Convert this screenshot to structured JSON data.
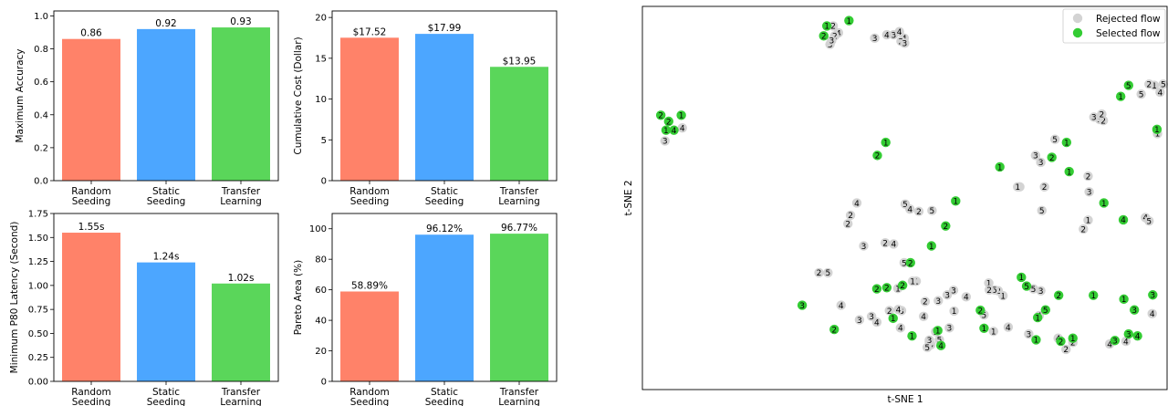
{
  "chart_data": [
    {
      "type": "bar",
      "categories": [
        "Random\nSeeding",
        "Static\nSeeding",
        "Transfer\nLearning"
      ],
      "values": [
        0.86,
        0.92,
        0.93
      ],
      "data_labels": [
        "0.86",
        "0.92",
        "0.93"
      ],
      "ylabel": "Maximum Accuracy",
      "ylim": [
        0,
        1.03
      ],
      "yticks": [
        0.0,
        0.2,
        0.4,
        0.6,
        0.8,
        1.0
      ],
      "ytick_labels": [
        "0.0",
        "0.2",
        "0.4",
        "0.6",
        "0.8",
        "1.0"
      ],
      "colors": [
        "#ff8269",
        "#4ca6ff",
        "#5ad65a"
      ]
    },
    {
      "type": "bar",
      "categories": [
        "Random\nSeeding",
        "Static\nSeeding",
        "Transfer\nLearning"
      ],
      "values": [
        17.52,
        17.99,
        13.95
      ],
      "data_labels": [
        "$17.52",
        "$17.99",
        "$13.95"
      ],
      "ylabel": "Cumulative Cost (Dollar)",
      "ylim": [
        0,
        20.8
      ],
      "yticks": [
        0,
        5,
        10,
        15,
        20
      ],
      "ytick_labels": [
        "0",
        "5",
        "10",
        "15",
        "20"
      ],
      "colors": [
        "#ff8269",
        "#4ca6ff",
        "#5ad65a"
      ]
    },
    {
      "type": "bar",
      "categories": [
        "Random\nSeeding",
        "Static\nSeeding",
        "Transfer\nLearning"
      ],
      "values": [
        1.55,
        1.24,
        1.02
      ],
      "data_labels": [
        "1.55s",
        "1.24s",
        "1.02s"
      ],
      "ylabel": "Minimum P80 Latency (Second)",
      "ylim": [
        0,
        1.75
      ],
      "yticks": [
        0.0,
        0.25,
        0.5,
        0.75,
        1.0,
        1.25,
        1.5,
        1.75
      ],
      "ytick_labels": [
        "0.00",
        "0.25",
        "0.50",
        "0.75",
        "1.00",
        "1.25",
        "1.50",
        "1.75"
      ],
      "colors": [
        "#ff8269",
        "#4ca6ff",
        "#5ad65a"
      ]
    },
    {
      "type": "bar",
      "categories": [
        "Random\nSeeding",
        "Static\nSeeding",
        "Transfer\nLearning"
      ],
      "values": [
        58.89,
        96.12,
        96.77
      ],
      "data_labels": [
        "58.89%",
        "96.12%",
        "96.77%"
      ],
      "ylabel": "Pareto Area (%)",
      "ylim": [
        0,
        110
      ],
      "yticks": [
        0,
        20,
        40,
        60,
        80,
        100
      ],
      "ytick_labels": [
        "0",
        "20",
        "40",
        "60",
        "80",
        "100"
      ],
      "colors": [
        "#ff8269",
        "#4ca6ff",
        "#5ad65a"
      ]
    },
    {
      "type": "scatter",
      "xlabel": "t-SNE 1",
      "ylabel": "t-SNE 2",
      "xlim": [
        0,
        100
      ],
      "ylim": [
        0,
        100
      ],
      "legend": "top-right",
      "series": [
        {
          "name": "Rejected flow",
          "color": "#d3d3d3",
          "points": [
            [
              49.8,
              91.7,
              "4"
            ],
            [
              49.2,
              90.9,
              "2"
            ],
            [
              49.9,
              90.4,
              "3"
            ],
            [
              44.2,
              91.7,
              "3"
            ],
            [
              46.5,
              92.6,
              "4"
            ],
            [
              47.8,
              92.6,
              "3"
            ],
            [
              48.9,
              93.4,
              "4"
            ],
            [
              4.3,
              64.9,
              "3"
            ],
            [
              7.6,
              68.3,
              "4"
            ],
            [
              36.3,
              94.9,
              "2"
            ],
            [
              35.7,
              90.1,
              "3"
            ],
            [
              37.3,
              93.1,
              "4"
            ],
            [
              36.6,
              92.3,
              "2"
            ],
            [
              36.0,
              91.1,
              "3"
            ],
            [
              97.4,
              79.4,
              "1"
            ],
            [
              96.4,
              79.7,
              "2"
            ],
            [
              99.1,
              79.7,
              "5"
            ],
            [
              98.5,
              77.6,
              "4"
            ],
            [
              94.9,
              77.1,
              "5"
            ],
            [
              87.0,
              70.5,
              "3"
            ],
            [
              87.7,
              70.2,
              "2"
            ],
            [
              87.4,
              71.9,
              "2"
            ],
            [
              85.9,
              71.1,
              "3"
            ],
            [
              78.5,
              65.3,
              "5"
            ],
            [
              98.0,
              66.8,
              "1"
            ],
            [
              74.8,
              61.1,
              "3"
            ],
            [
              75.8,
              59.3,
              "3"
            ],
            [
              71.8,
              52.9,
              "3"
            ],
            [
              71.4,
              52.9,
              "1"
            ],
            [
              76.5,
              52.9,
              "2"
            ],
            [
              76.0,
              46.7,
              "5"
            ],
            [
              84.8,
              55.7,
              "2"
            ],
            [
              85.0,
              51.6,
              "3"
            ],
            [
              95.7,
              44.9,
              "4"
            ],
            [
              96.4,
              44.0,
              "5"
            ],
            [
              83.9,
              41.9,
              "2"
            ],
            [
              84.8,
              44.2,
              "1"
            ],
            [
              50.0,
              48.4,
              "5"
            ],
            [
              50.9,
              47.1,
              "4"
            ],
            [
              52.6,
              46.5,
              "2"
            ],
            [
              55.1,
              46.7,
              "5"
            ],
            [
              40.8,
              48.7,
              "4"
            ],
            [
              39.6,
              45.5,
              "2"
            ],
            [
              39.1,
              43.3,
              "2"
            ],
            [
              42.1,
              37.5,
              "3"
            ],
            [
              35.3,
              30.5,
              "5"
            ],
            [
              33.6,
              30.5,
              "2"
            ],
            [
              46.2,
              38.3,
              "2"
            ],
            [
              47.8,
              38.0,
              "4"
            ],
            [
              52.1,
              28.3,
              "1"
            ],
            [
              51.4,
              28.3,
              "1"
            ],
            [
              59.3,
              20.5,
              "1"
            ],
            [
              61.6,
              24.2,
              "4"
            ],
            [
              58.4,
              16.1,
              "3"
            ],
            [
              56.5,
              13.0,
              "5"
            ],
            [
              55.8,
              15.1,
              "1"
            ],
            [
              54.9,
              11.7,
              "5"
            ],
            [
              54.6,
              12.5,
              "4"
            ],
            [
              54.6,
              12.9,
              "3"
            ],
            [
              54.2,
              11.0,
              "5"
            ],
            [
              68.6,
              24.5,
              "1"
            ],
            [
              67.7,
              25.8,
              "2"
            ],
            [
              65.9,
              27.8,
              "1"
            ],
            [
              75.5,
              19.3,
              "4"
            ],
            [
              79.1,
              13.4,
              "4"
            ],
            [
              81.9,
              12.3,
              "2"
            ],
            [
              80.6,
              10.5,
              "2"
            ],
            [
              88.9,
              11.9,
              "4"
            ],
            [
              97.0,
              19.8,
              "4"
            ],
            [
              92.0,
              12.6,
              "4"
            ],
            [
              37.8,
              22.0,
              "4"
            ],
            [
              49.8,
              33.1,
              "5"
            ],
            [
              48.6,
              26.4,
              "1"
            ],
            [
              49.3,
              20.6,
              "3"
            ],
            [
              48.7,
              20.9,
              "4"
            ],
            [
              47.0,
              20.6,
              "2"
            ],
            [
              49.1,
              16.1,
              "4"
            ],
            [
              53.5,
              19.1,
              "4"
            ],
            [
              53.8,
              23.0,
              "2"
            ],
            [
              56.3,
              23.2,
              "3"
            ],
            [
              59.2,
              25.9,
              "3"
            ],
            [
              65.0,
              19.5,
              "5"
            ],
            [
              58.0,
              24.7,
              "3"
            ],
            [
              69.6,
              16.3,
              "4"
            ],
            [
              67.0,
              26.0,
              "5"
            ],
            [
              66.0,
              26.0,
              "2"
            ],
            [
              66.8,
              15.2,
              "1"
            ],
            [
              41.3,
              18.2,
              "3"
            ],
            [
              43.6,
              19.1,
              "3"
            ],
            [
              44.6,
              17.6,
              "4"
            ],
            [
              73.5,
              14.5,
              "3"
            ],
            [
              75.8,
              25.8,
              "3"
            ],
            [
              74.4,
              26.3,
              "5"
            ]
          ]
        },
        {
          "name": "Selected flow",
          "color": "#33cc33",
          "points": [
            [
              34.5,
              92.3,
              "2"
            ],
            [
              35.1,
              94.9,
              "1"
            ],
            [
              39.3,
              96.3,
              "1"
            ],
            [
              3.5,
              71.6,
              "2"
            ],
            [
              5.0,
              70.0,
              "2"
            ],
            [
              7.4,
              71.6,
              "1"
            ],
            [
              4.5,
              67.7,
              "1"
            ],
            [
              6.0,
              67.7,
              "4"
            ],
            [
              44.7,
              61.1,
              "2"
            ],
            [
              46.3,
              64.5,
              "1"
            ],
            [
              92.5,
              79.4,
              "5"
            ],
            [
              91.0,
              76.5,
              "1"
            ],
            [
              97.9,
              67.9,
              "1"
            ],
            [
              80.7,
              64.5,
              "1"
            ],
            [
              77.9,
              60.6,
              "2"
            ],
            [
              81.2,
              56.9,
              "1"
            ],
            [
              87.8,
              48.7,
              "1"
            ],
            [
              91.5,
              44.3,
              "4"
            ],
            [
              68.0,
              58.1,
              "1"
            ],
            [
              59.6,
              49.2,
              "1"
            ],
            [
              57.7,
              42.7,
              "2"
            ],
            [
              55.0,
              37.5,
              "1"
            ],
            [
              51.0,
              33.1,
              "2"
            ],
            [
              46.5,
              26.6,
              "2"
            ],
            [
              44.6,
              26.3,
              "2"
            ],
            [
              51.3,
              14.0,
              "1"
            ],
            [
              56.8,
              11.5,
              "4"
            ],
            [
              74.9,
              13.0,
              "1"
            ],
            [
              79.6,
              12.6,
              "2"
            ],
            [
              89.9,
              12.8,
              "3"
            ],
            [
              93.6,
              20.8,
              "3"
            ],
            [
              92.5,
              14.5,
              "3"
            ],
            [
              94.2,
              14.0,
              "4"
            ],
            [
              97.1,
              24.7,
              "3"
            ],
            [
              91.6,
              23.6,
              "1"
            ],
            [
              85.8,
              24.6,
              "1"
            ],
            [
              81.9,
              13.4,
              "1"
            ],
            [
              79.2,
              24.6,
              "2"
            ],
            [
              76.7,
              20.8,
              "5"
            ],
            [
              72.1,
              29.3,
              "1"
            ],
            [
              73.1,
              27.0,
              "5"
            ],
            [
              30.4,
              22.0,
              "3"
            ],
            [
              36.5,
              15.7,
              "2"
            ],
            [
              47.7,
              18.6,
              "1"
            ],
            [
              49.5,
              27.2,
              "2"
            ],
            [
              56.2,
              15.4,
              "1"
            ],
            [
              64.3,
              20.7,
              "2"
            ],
            [
              65.0,
              16.0,
              "1"
            ],
            [
              75.2,
              18.8,
              "1"
            ]
          ]
        }
      ]
    }
  ]
}
